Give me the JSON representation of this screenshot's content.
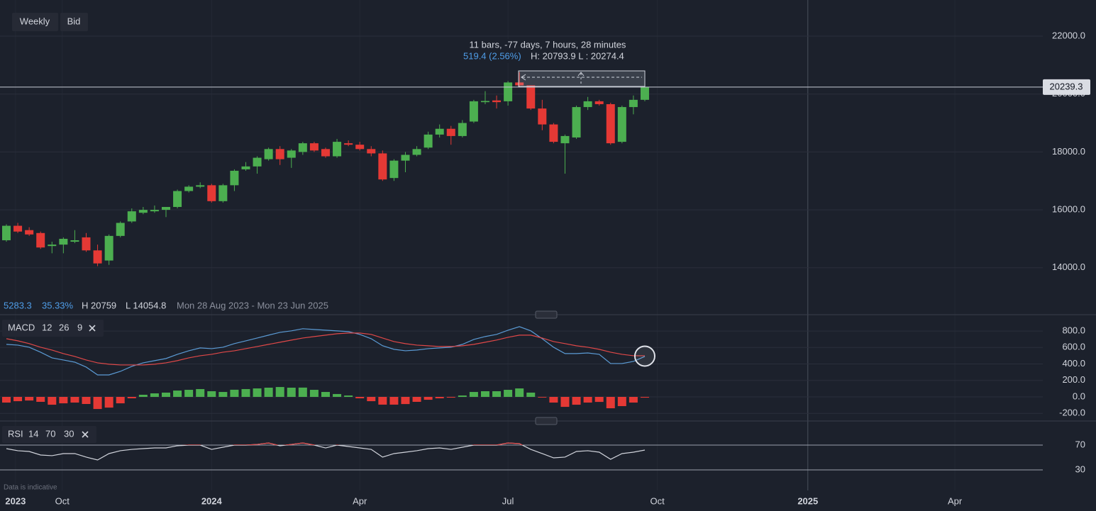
{
  "toolbar": {
    "interval": "Weekly",
    "price_side": "Bid"
  },
  "measure": {
    "bars": "11 bars, -77 days, 7 hours, 28 minutes",
    "change": "519.4 (2.56%)",
    "range": "H: 20793.9 L : 20274.4"
  },
  "stats": {
    "change": "5283.3",
    "percent": "35.33%",
    "high": "H 20759",
    "low": "L 14054.8",
    "period": "Mon 28 Aug 2023 - Mon 23 Jun 2025"
  },
  "footnote": "Data is indicative",
  "chart_data": [
    {
      "type": "candlestick",
      "x": [
        0,
        1,
        2,
        3,
        4,
        5,
        6,
        7,
        8,
        9,
        10,
        11,
        12,
        13,
        14,
        15,
        16,
        17,
        18,
        19,
        20,
        21,
        22,
        23,
        24,
        25,
        26,
        27,
        28,
        29,
        30,
        31,
        32,
        33,
        34,
        35,
        36,
        37,
        38,
        39,
        40,
        41,
        42,
        43,
        44,
        45,
        46,
        47,
        48,
        49,
        50,
        51,
        52,
        53,
        54,
        55,
        56
      ],
      "open": [
        14950,
        15450,
        15300,
        15200,
        14750,
        14800,
        14900,
        15050,
        14600,
        14250,
        15100,
        15600,
        15900,
        15950,
        16000,
        16100,
        16650,
        16800,
        16850,
        16300,
        16850,
        17400,
        17500,
        17750,
        18100,
        17800,
        18000,
        18300,
        18100,
        17850,
        18300,
        18250,
        18100,
        17950,
        17100,
        17700,
        17900,
        18150,
        18600,
        18800,
        18550,
        19050,
        19720,
        19780,
        19750,
        20400,
        20300,
        19500,
        18950,
        18300,
        18500,
        19550,
        19750,
        19650,
        18350,
        19550,
        19800
      ],
      "high": [
        15500,
        15550,
        15400,
        15250,
        14900,
        15050,
        15300,
        15200,
        14800,
        15150,
        15600,
        16050,
        16100,
        16150,
        16100,
        16700,
        16850,
        16950,
        16900,
        16900,
        17400,
        17650,
        17850,
        18150,
        18200,
        18100,
        18350,
        18350,
        18150,
        18450,
        18400,
        18350,
        18200,
        18050,
        17750,
        18000,
        18200,
        18700,
        18950,
        18900,
        19100,
        19800,
        20100,
        19950,
        20450,
        20759,
        20300,
        19800,
        19000,
        18600,
        19600,
        19900,
        19800,
        19700,
        19600,
        19950,
        20350
      ],
      "low": [
        14900,
        15200,
        15100,
        14650,
        14500,
        14500,
        14850,
        14550,
        14055,
        14100,
        15050,
        15550,
        15850,
        15900,
        15750,
        16050,
        16600,
        16750,
        16250,
        16250,
        16650,
        17350,
        17250,
        17700,
        17550,
        17450,
        17900,
        18000,
        17800,
        17800,
        18200,
        18050,
        17850,
        17000,
        17000,
        17300,
        17850,
        18100,
        18500,
        18250,
        18500,
        19000,
        19650,
        19500,
        19600,
        20250,
        19450,
        18750,
        18300,
        17250,
        18450,
        19450,
        19600,
        18250,
        18300,
        19300,
        19750
      ],
      "close": [
        15450,
        15250,
        15150,
        14700,
        14800,
        15000,
        14950,
        14600,
        14150,
        15100,
        15550,
        15950,
        16000,
        16000,
        16100,
        16650,
        16800,
        16850,
        16300,
        16850,
        17350,
        17500,
        17800,
        18100,
        17750,
        18050,
        18300,
        18050,
        17850,
        18350,
        18250,
        18100,
        17950,
        17050,
        17700,
        17900,
        18100,
        18600,
        18800,
        18550,
        19000,
        19750,
        19760,
        19720,
        20400,
        20300,
        19500,
        18950,
        18350,
        18550,
        19550,
        19750,
        19650,
        18300,
        19550,
        19800,
        20239.3
      ],
      "up_color": "#4caf50",
      "down_color": "#e53935",
      "last_price": 20239.3,
      "xlim": [
        -0.56,
        90.91
      ],
      "xticks": [
        {
          "value": 0.8,
          "label": "2023"
        },
        {
          "value": 4.9,
          "label": "Oct"
        },
        {
          "value": 18,
          "label": "2024"
        },
        {
          "value": 31,
          "label": "Apr"
        },
        {
          "value": 44,
          "label": "Jul"
        },
        {
          "value": 57.1,
          "label": "Oct"
        },
        {
          "value": 70.3,
          "label": "2025"
        },
        {
          "value": 83.2,
          "label": "Apr"
        }
      ],
      "ylim": [
        12404,
        23248
      ],
      "yticks": [
        {
          "value": 14000,
          "label": "14000.0"
        },
        {
          "value": 16000,
          "label": "16000.0"
        },
        {
          "value": 18000,
          "label": "18000.0"
        },
        {
          "value": 20000,
          "label": "20000.0"
        },
        {
          "value": 22000,
          "label": "22000.0"
        }
      ],
      "grid": true
    },
    {
      "type": "macd",
      "title": "MACD",
      "params": [
        12,
        26,
        9
      ],
      "series": [
        {
          "color": "#5b9bd5",
          "values": [
            638,
            629,
            603,
            543,
            474,
            448,
            422,
            362,
            267,
            267,
            310,
            371,
            414,
            440,
            466,
            517,
            560,
            595,
            586,
            603,
            647,
            681,
            715,
            750,
            784,
            802,
            828,
            819,
            810,
            802,
            793,
            759,
            707,
            621,
            578,
            560,
            569,
            586,
            595,
            603,
            638,
            698,
            733,
            759,
            810,
            853,
            802,
            707,
            603,
            526,
            526,
            534,
            517,
            405,
            405,
            431,
            491
          ]
        },
        {
          "color": "#e04848",
          "values": [
            707,
            681,
            647,
            603,
            569,
            526,
            491,
            448,
            414,
            397,
            388,
            388,
            388,
            397,
            414,
            440,
            474,
            500,
            517,
            543,
            560,
            586,
            612,
            638,
            664,
            690,
            715,
            733,
            750,
            767,
            776,
            776,
            759,
            715,
            672,
            647,
            629,
            621,
            612,
            612,
            621,
            638,
            664,
            690,
            724,
            750,
            750,
            715,
            672,
            647,
            621,
            603,
            578,
            543,
            517,
            500,
            500
          ]
        }
      ],
      "histogram": {
        "up_color": "#4caf50",
        "down_color": "#e53935",
        "values": [
          -69,
          -52,
          -44,
          -60,
          -95,
          -78,
          -69,
          -86,
          -147,
          -130,
          -78,
          -17,
          26,
          43,
          52,
          77,
          86,
          95,
          69,
          60,
          87,
          95,
          103,
          112,
          120,
          112,
          113,
          86,
          60,
          35,
          17,
          -17,
          -52,
          -94,
          -94,
          -87,
          -60,
          -35,
          -17,
          -9,
          17,
          60,
          69,
          69,
          86,
          103,
          52,
          -8,
          -69,
          -121,
          -95,
          -69,
          -61,
          -138,
          -112,
          -69,
          -9
        ]
      },
      "ylim": [
        -284,
        990
      ],
      "yticks": [
        {
          "value": -200,
          "label": "-200.0"
        },
        {
          "value": 0,
          "label": "0.0"
        },
        {
          "value": 200,
          "label": "200.0"
        },
        {
          "value": 400,
          "label": "400.0"
        },
        {
          "value": 600,
          "label": "600.0"
        },
        {
          "value": 800,
          "label": "800.0"
        }
      ],
      "grid": true
    },
    {
      "type": "rsi",
      "title": "RSI",
      "params": [
        14,
        70,
        30
      ],
      "color": "#d1d4dc",
      "overbought_color": "#e04848",
      "values": [
        64.3,
        60.9,
        59.7,
        54,
        52.9,
        56.3,
        56.3,
        50.6,
        46,
        56.3,
        60.9,
        63.1,
        64.3,
        65.4,
        65.4,
        68.9,
        70,
        70,
        63.1,
        66.6,
        70,
        70,
        71.1,
        73.4,
        68.9,
        71.1,
        73.4,
        70,
        65.4,
        70,
        67.7,
        65.4,
        63.1,
        50.6,
        56.3,
        58.6,
        60.9,
        64.3,
        65.4,
        63.1,
        66.6,
        70,
        70,
        70,
        73.4,
        72.3,
        63.1,
        56.3,
        49.4,
        50.6,
        59.7,
        60.9,
        58.6,
        47.1,
        56.3,
        58.6,
        62
      ],
      "ylim": [
        -0.9,
        106.6
      ],
      "yticks": [
        30,
        70
      ],
      "grid": true
    }
  ]
}
